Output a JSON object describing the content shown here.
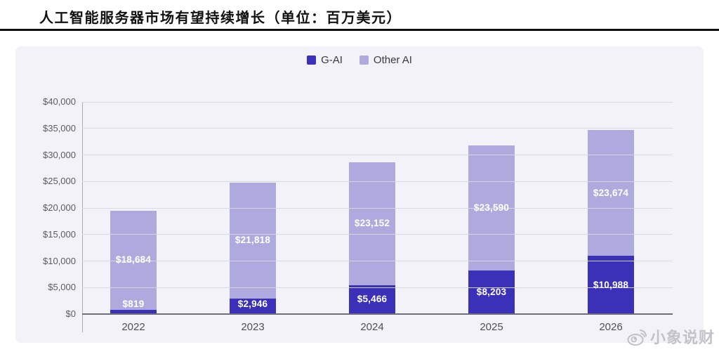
{
  "page": {
    "title": "人工智能服务器市场有望持续增长（单位：百万美元）",
    "unit": "百万美元",
    "watermark": {
      "label": "小象说财",
      "icon": "weibo-icon"
    }
  },
  "chart_data": {
    "type": "bar",
    "stacked": true,
    "title": "人工智能服务器市场有望持续增长（单位：百万美元）",
    "categories": [
      "2022",
      "2023",
      "2024",
      "2025",
      "2026"
    ],
    "series": [
      {
        "name": "G-AI",
        "color": "#3b31b9",
        "values": [
          819,
          2946,
          5466,
          8203,
          10988
        ],
        "labels": [
          "$819",
          "$2,946",
          "$5,466",
          "$8,203",
          "$10,988"
        ]
      },
      {
        "name": "Other AI",
        "color": "#afaade",
        "values": [
          18684,
          21818,
          23152,
          23590,
          23674
        ],
        "labels": [
          "$18,684",
          "$21,818",
          "$23,152",
          "$23,590",
          "$23,674"
        ]
      }
    ],
    "totals": [
      19503,
      24764,
      28618,
      31793,
      34662
    ],
    "xlabel": "",
    "ylabel": "",
    "ylim": [
      0,
      40000
    ],
    "ytick_step": 5000,
    "ytick_labels": [
      "$0",
      "$5,000",
      "$10,000",
      "$15,000",
      "$20,000",
      "$25,000",
      "$30,000",
      "$35,000",
      "$40,000"
    ],
    "legend_position": "top-center",
    "grid": true,
    "grid_on_top_of_bars": true,
    "label_color": "#ffffff"
  }
}
